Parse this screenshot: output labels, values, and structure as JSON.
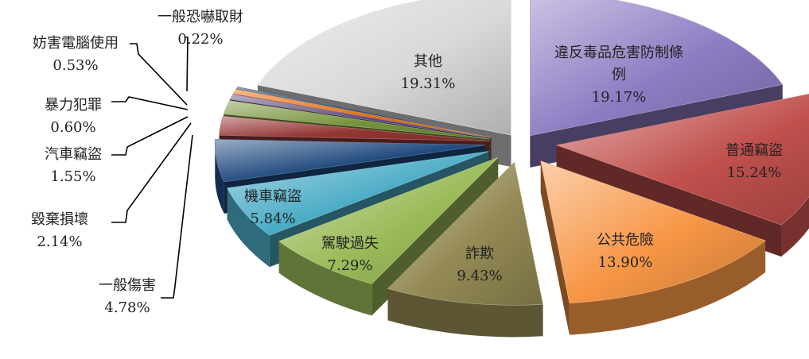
{
  "chart_data": {
    "type": "pie",
    "title": "",
    "slices": [
      {
        "label": "違反毒品危害防制條例",
        "label_lines": [
          "違反毒品危害防制條",
          "例"
        ],
        "value": 19.17,
        "value_text": "19.17%",
        "color": "#8e7cc3"
      },
      {
        "label": "普通竊盜",
        "label_lines": [
          "普通竊盜"
        ],
        "value": 15.24,
        "value_text": "15.24%",
        "color": "#c0504d"
      },
      {
        "label": "公共危險",
        "label_lines": [
          "公共危險"
        ],
        "value": 13.9,
        "value_text": "13.90%",
        "color": "#f79646"
      },
      {
        "label": "詐欺",
        "label_lines": [
          "詐欺"
        ],
        "value": 9.43,
        "value_text": "9.43%",
        "color": "#948a54"
      },
      {
        "label": "駕駛過失",
        "label_lines": [
          "駕駛過失"
        ],
        "value": 7.29,
        "value_text": "7.29%",
        "color": "#9bbb59"
      },
      {
        "label": "機車竊盜",
        "label_lines": [
          "機車竊盜"
        ],
        "value": 5.84,
        "value_text": "5.84%",
        "color": "#4bacc6"
      },
      {
        "label": "一般傷害",
        "label_lines": [
          "一般傷害"
        ],
        "value": 4.78,
        "value_text": "4.78%",
        "color": "#1f497d"
      },
      {
        "label": "毀棄損壞",
        "label_lines": [
          "毀棄損壞"
        ],
        "value": 2.14,
        "value_text": "2.14%",
        "color": "#953735"
      },
      {
        "label": "汽車竊盜",
        "label_lines": [
          "汽車竊盜"
        ],
        "value": 1.55,
        "value_text": "1.55%",
        "color": "#77933c"
      },
      {
        "label": "暴力犯罪",
        "label_lines": [
          "暴力犯罪"
        ],
        "value": 0.6,
        "value_text": "0.60%",
        "color": "#604a7b"
      },
      {
        "label": "妨害電腦使用",
        "label_lines": [
          "妨害電腦使用"
        ],
        "value": 0.53,
        "value_text": "0.53%",
        "color": "#e46c0a"
      },
      {
        "label": "一般恐嚇取財",
        "label_lines": [
          "一般恐嚇取財"
        ],
        "value": 0.22,
        "value_text": "0.22%",
        "color": "#17375e"
      },
      {
        "label": "其他",
        "label_lines": [
          "其他"
        ],
        "value": 19.31,
        "value_text": "19.31%",
        "color": "#d9d9d9"
      }
    ],
    "legend": "none",
    "style": "exploded-3d"
  }
}
